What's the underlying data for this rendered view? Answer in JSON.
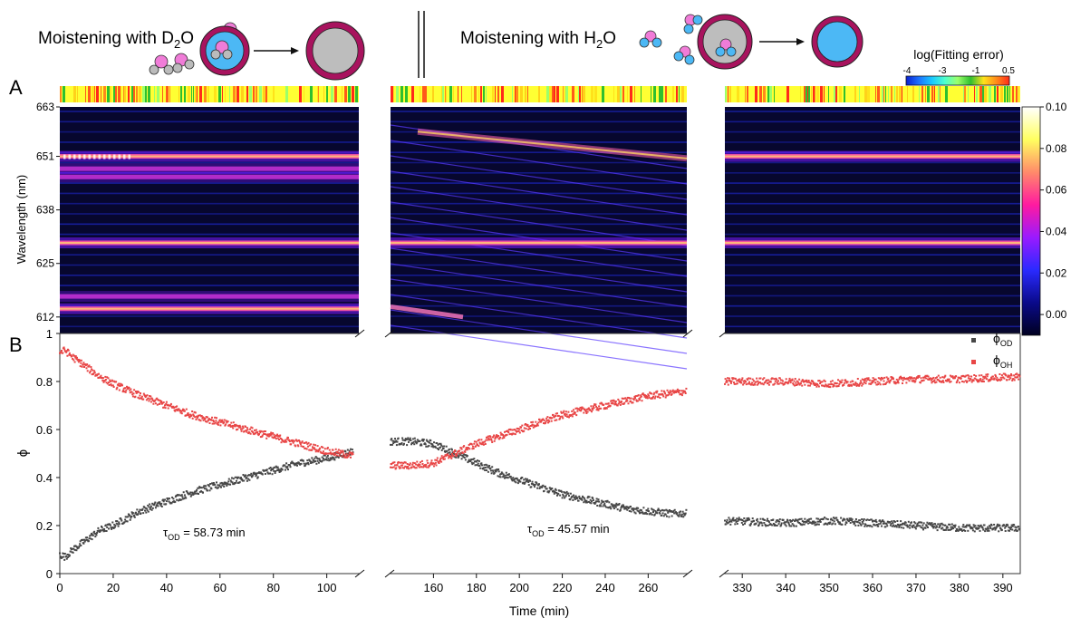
{
  "header": {
    "left_caption": "Moistening with D",
    "left_caption_sub": "2",
    "left_caption_tail": "O",
    "right_caption": "Moistening with H",
    "right_caption_sub": "2",
    "right_caption_tail": "O"
  },
  "panel_labels": {
    "a": "A",
    "b": "B"
  },
  "error_colorbar": {
    "title": "log(Fitting error)",
    "ticks": [
      "-4",
      "-3",
      "-1",
      "0.5"
    ],
    "colors": [
      "#0a1fd0",
      "#1c73ff",
      "#19c8ff",
      "#4dffce",
      "#9bff6a",
      "#2fbf2f",
      "#ffe21a",
      "#ff8a1a",
      "#ff2a1a"
    ]
  },
  "intensity_colorbar": {
    "ticks": [
      "0.10",
      "0.08",
      "0.06",
      "0.04",
      "0.02",
      "0.00"
    ]
  },
  "chart_data": [
    {
      "type": "heatmap",
      "ylabel": "Wavelength (nm)",
      "yticks": [
        "663",
        "651",
        "638",
        "625",
        "612"
      ],
      "ylim": [
        608,
        663
      ],
      "segments": [
        {
          "xlim": [
            0,
            112
          ],
          "lines_nm": [
            651,
            648,
            646,
            630,
            617,
            614
          ]
        },
        {
          "xlim": [
            140,
            278
          ],
          "lines_nm": [
            630,
            655,
            612
          ]
        },
        {
          "xlim": [
            326,
            394
          ],
          "lines_nm": [
            651,
            630
          ]
        }
      ],
      "colorscale": [
        "#000020",
        "#0a0a8a",
        "#2a2aff",
        "#9a1aff",
        "#ff1aa0",
        "#ff8a6a",
        "#ffff60",
        "#ffffff"
      ],
      "zlim": [
        -0.01,
        0.1
      ]
    },
    {
      "type": "scatter",
      "xlabel": "Time (min)",
      "ylabel": "ϕ",
      "ylim": [
        0,
        1
      ],
      "yticks": [
        "0",
        "0.2",
        "0.4",
        "0.6",
        "0.8",
        "1"
      ],
      "segments": [
        {
          "xlim": [
            0,
            112
          ],
          "xticks": [
            0,
            20,
            40,
            60,
            80,
            100
          ]
        },
        {
          "xlim": [
            140,
            278
          ],
          "xticks": [
            160,
            180,
            200,
            220,
            240,
            260
          ]
        },
        {
          "xlim": [
            326,
            394
          ],
          "xticks": [
            330,
            340,
            350,
            360,
            370,
            380,
            390
          ]
        }
      ],
      "series": [
        {
          "name": "ϕ",
          "name_sub": "OD",
          "color": "#474747",
          "points": [
            [
              0,
              0.08
            ],
            [
              2,
              0.07
            ],
            [
              5,
              0.1
            ],
            [
              10,
              0.14
            ],
            [
              15,
              0.18
            ],
            [
              20,
              0.2
            ],
            [
              30,
              0.26
            ],
            [
              40,
              0.3
            ],
            [
              50,
              0.34
            ],
            [
              60,
              0.37
            ],
            [
              70,
              0.4
            ],
            [
              80,
              0.43
            ],
            [
              90,
              0.46
            ],
            [
              100,
              0.48
            ],
            [
              110,
              0.51
            ],
            [
              140,
              0.55
            ],
            [
              150,
              0.55
            ],
            [
              160,
              0.54
            ],
            [
              170,
              0.5
            ],
            [
              180,
              0.46
            ],
            [
              190,
              0.42
            ],
            [
              200,
              0.39
            ],
            [
              210,
              0.36
            ],
            [
              220,
              0.33
            ],
            [
              230,
              0.31
            ],
            [
              240,
              0.29
            ],
            [
              250,
              0.27
            ],
            [
              260,
              0.26
            ],
            [
              270,
              0.25
            ],
            [
              278,
              0.25
            ],
            [
              326,
              0.22
            ],
            [
              340,
              0.21
            ],
            [
              350,
              0.22
            ],
            [
              360,
              0.21
            ],
            [
              370,
              0.2
            ],
            [
              380,
              0.19
            ],
            [
              394,
              0.19
            ]
          ]
        },
        {
          "name": "ϕ",
          "name_sub": "OH",
          "color": "#e84646",
          "points": [
            [
              0,
              0.92
            ],
            [
              2,
              0.93
            ],
            [
              5,
              0.9
            ],
            [
              10,
              0.86
            ],
            [
              15,
              0.82
            ],
            [
              20,
              0.79
            ],
            [
              30,
              0.74
            ],
            [
              40,
              0.7
            ],
            [
              50,
              0.66
            ],
            [
              60,
              0.63
            ],
            [
              70,
              0.6
            ],
            [
              80,
              0.57
            ],
            [
              90,
              0.54
            ],
            [
              100,
              0.51
            ],
            [
              110,
              0.49
            ],
            [
              140,
              0.45
            ],
            [
              150,
              0.45
            ],
            [
              160,
              0.46
            ],
            [
              170,
              0.5
            ],
            [
              180,
              0.54
            ],
            [
              190,
              0.57
            ],
            [
              200,
              0.6
            ],
            [
              210,
              0.63
            ],
            [
              220,
              0.66
            ],
            [
              230,
              0.68
            ],
            [
              240,
              0.7
            ],
            [
              250,
              0.72
            ],
            [
              260,
              0.74
            ],
            [
              270,
              0.75
            ],
            [
              278,
              0.76
            ],
            [
              326,
              0.8
            ],
            [
              340,
              0.8
            ],
            [
              350,
              0.79
            ],
            [
              360,
              0.8
            ],
            [
              370,
              0.81
            ],
            [
              380,
              0.81
            ],
            [
              394,
              0.82
            ]
          ]
        }
      ],
      "annotations": [
        {
          "label": "τ",
          "sub": "OD",
          "text": " = 58.73 min"
        },
        {
          "label": "τ",
          "sub": "OD",
          "text": " = 45.57 min"
        }
      ]
    }
  ]
}
